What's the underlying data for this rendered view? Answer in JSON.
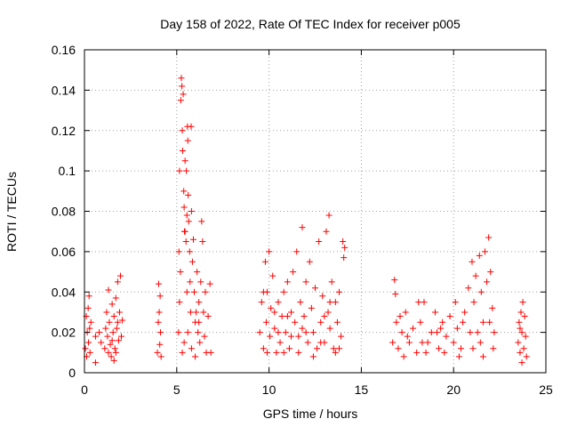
{
  "chart_data": {
    "type": "scatter",
    "title": "Day 158 of 2022, Rate Of TEC Index for receiver p005",
    "xlabel": "GPS time / hours",
    "ylabel": "ROTI / TECUs",
    "xlim": [
      0,
      25
    ],
    "ylim": [
      0,
      0.16
    ],
    "x_ticks": [
      0,
      5,
      10,
      15,
      20,
      25
    ],
    "x_tick_labels": [
      "0",
      "5",
      "10",
      "15",
      "20",
      "25"
    ],
    "y_ticks": [
      0,
      0.02,
      0.04,
      0.06,
      0.08,
      0.1,
      0.12,
      0.14,
      0.16
    ],
    "y_tick_labels": [
      "0",
      "0.02",
      "0.04",
      "0.06",
      "0.08",
      "0.1",
      "0.12",
      "0.14",
      "0.16"
    ],
    "grid": true,
    "marker": "+",
    "color": "#ff0000",
    "series": [
      {
        "name": "ROTI",
        "points": [
          [
            0.05,
            0.012
          ],
          [
            0.1,
            0.028
          ],
          [
            0.12,
            0.008
          ],
          [
            0.15,
            0.02
          ],
          [
            0.2,
            0.032
          ],
          [
            0.22,
            0.015
          ],
          [
            0.25,
            0.038
          ],
          [
            0.28,
            0.022
          ],
          [
            0.3,
            0.01
          ],
          [
            0.35,
            0.025
          ],
          [
            0.6,
            0.005
          ],
          [
            0.6,
            0.018
          ],
          [
            0.8,
            0.02
          ],
          [
            0.9,
            0.015
          ],
          [
            1.1,
            0.012
          ],
          [
            1.15,
            0.022
          ],
          [
            1.2,
            0.03
          ],
          [
            1.25,
            0.018
          ],
          [
            1.3,
            0.041
          ],
          [
            1.35,
            0.025
          ],
          [
            1.4,
            0.014
          ],
          [
            1.45,
            0.008
          ],
          [
            1.5,
            0.034
          ],
          [
            1.55,
            0.02
          ],
          [
            1.6,
            0.028
          ],
          [
            1.65,
            0.012
          ],
          [
            1.7,
            0.037
          ],
          [
            1.75,
            0.022
          ],
          [
            1.8,
            0.045
          ],
          [
            1.85,
            0.016
          ],
          [
            1.9,
            0.03
          ],
          [
            1.95,
            0.048
          ],
          [
            2.0,
            0.018
          ],
          [
            2.05,
            0.026
          ],
          [
            1.7,
            0.01
          ],
          [
            1.5,
            0.016
          ],
          [
            1.3,
            0.01
          ],
          [
            1.8,
            0.025
          ],
          [
            1.6,
            0.006
          ],
          [
            3.95,
            0.01
          ],
          [
            4.0,
            0.025
          ],
          [
            4.02,
            0.044
          ],
          [
            4.05,
            0.03
          ],
          [
            4.08,
            0.014
          ],
          [
            4.1,
            0.038
          ],
          [
            4.12,
            0.02
          ],
          [
            4.15,
            0.008
          ],
          [
            5.1,
            0.02
          ],
          [
            5.12,
            0.06
          ],
          [
            5.15,
            0.1
          ],
          [
            5.2,
            0.05
          ],
          [
            5.22,
            0.135
          ],
          [
            5.25,
            0.146
          ],
          [
            5.28,
            0.142
          ],
          [
            5.3,
            0.12
          ],
          [
            5.32,
            0.11
          ],
          [
            5.35,
            0.138
          ],
          [
            5.38,
            0.09
          ],
          [
            5.4,
            0.082
          ],
          [
            5.42,
            0.07
          ],
          [
            5.45,
            0.105
          ],
          [
            5.5,
            0.065
          ],
          [
            5.52,
            0.1
          ],
          [
            5.55,
            0.04
          ],
          [
            5.58,
            0.122
          ],
          [
            5.6,
            0.115
          ],
          [
            5.62,
            0.088
          ],
          [
            5.65,
            0.075
          ],
          [
            5.7,
            0.06
          ],
          [
            5.72,
            0.045
          ],
          [
            5.75,
            0.03
          ],
          [
            5.78,
            0.122
          ],
          [
            5.8,
            0.08
          ],
          [
            5.85,
            0.055
          ],
          [
            5.9,
            0.066
          ],
          [
            5.95,
            0.04
          ],
          [
            6.0,
            0.025
          ],
          [
            6.05,
            0.03
          ],
          [
            6.1,
            0.05
          ],
          [
            6.15,
            0.02
          ],
          [
            6.2,
            0.035
          ],
          [
            6.25,
            0.015
          ],
          [
            6.3,
            0.045
          ],
          [
            6.35,
            0.075
          ],
          [
            6.4,
            0.065
          ],
          [
            6.45,
            0.03
          ],
          [
            6.5,
            0.018
          ],
          [
            6.55,
            0.04
          ],
          [
            6.6,
            0.01
          ],
          [
            6.7,
            0.028
          ],
          [
            5.3,
            0.01
          ],
          [
            5.4,
            0.015
          ],
          [
            5.6,
            0.02
          ],
          [
            5.8,
            0.012
          ],
          [
            6.0,
            0.008
          ],
          [
            6.2,
            0.025
          ],
          [
            6.8,
            0.044
          ],
          [
            6.85,
            0.01
          ],
          [
            5.45,
            0.07
          ],
          [
            5.55,
            0.078
          ],
          [
            5.15,
            0.035
          ],
          [
            9.5,
            0.02
          ],
          [
            9.6,
            0.035
          ],
          [
            9.7,
            0.012
          ],
          [
            9.8,
            0.055
          ],
          [
            9.85,
            0.025
          ],
          [
            9.9,
            0.04
          ],
          [
            10.0,
            0.06
          ],
          [
            10.05,
            0.018
          ],
          [
            10.1,
            0.032
          ],
          [
            10.2,
            0.048
          ],
          [
            10.3,
            0.022
          ],
          [
            10.4,
            0.01
          ],
          [
            10.5,
            0.035
          ],
          [
            10.6,
            0.015
          ],
          [
            10.7,
            0.028
          ],
          [
            10.8,
            0.04
          ],
          [
            10.9,
            0.02
          ],
          [
            11.0,
            0.045
          ],
          [
            11.1,
            0.012
          ],
          [
            11.2,
            0.03
          ],
          [
            11.3,
            0.05
          ],
          [
            11.4,
            0.025
          ],
          [
            11.5,
            0.06
          ],
          [
            11.6,
            0.018
          ],
          [
            11.7,
            0.035
          ],
          [
            11.8,
            0.072
          ],
          [
            11.9,
            0.028
          ],
          [
            12.0,
            0.045
          ],
          [
            12.1,
            0.015
          ],
          [
            12.2,
            0.055
          ],
          [
            12.3,
            0.032
          ],
          [
            12.4,
            0.02
          ],
          [
            12.5,
            0.042
          ],
          [
            12.6,
            0.012
          ],
          [
            12.7,
            0.065
          ],
          [
            12.8,
            0.025
          ],
          [
            12.9,
            0.038
          ],
          [
            13.0,
            0.015
          ],
          [
            13.1,
            0.07
          ],
          [
            13.2,
            0.03
          ],
          [
            13.25,
            0.078
          ],
          [
            13.3,
            0.022
          ],
          [
            13.4,
            0.045
          ],
          [
            13.5,
            0.012
          ],
          [
            13.6,
            0.035
          ],
          [
            13.7,
            0.025
          ],
          [
            13.8,
            0.04
          ],
          [
            13.9,
            0.018
          ],
          [
            14.0,
            0.065
          ],
          [
            14.05,
            0.057
          ],
          [
            14.1,
            0.062
          ],
          [
            9.7,
            0.04
          ],
          [
            10.3,
            0.03
          ],
          [
            11.0,
            0.028
          ],
          [
            12.0,
            0.02
          ],
          [
            13.0,
            0.028
          ],
          [
            10.8,
            0.01
          ],
          [
            11.6,
            0.01
          ],
          [
            12.4,
            0.008
          ],
          [
            13.6,
            0.01
          ],
          [
            9.9,
            0.01
          ],
          [
            11.2,
            0.018
          ],
          [
            12.8,
            0.015
          ],
          [
            13.8,
            0.012
          ],
          [
            10.5,
            0.02
          ],
          [
            11.8,
            0.022
          ],
          [
            13.3,
            0.035
          ],
          [
            16.7,
            0.015
          ],
          [
            16.8,
            0.046
          ],
          [
            16.85,
            0.039
          ],
          [
            16.9,
            0.025
          ],
          [
            17.0,
            0.012
          ],
          [
            17.2,
            0.02
          ],
          [
            17.4,
            0.03
          ],
          [
            17.6,
            0.015
          ],
          [
            17.8,
            0.022
          ],
          [
            18.0,
            0.01
          ],
          [
            18.2,
            0.025
          ],
          [
            18.4,
            0.035
          ],
          [
            18.6,
            0.015
          ],
          [
            18.8,
            0.02
          ],
          [
            19.0,
            0.03
          ],
          [
            19.2,
            0.012
          ],
          [
            19.4,
            0.025
          ],
          [
            19.6,
            0.018
          ],
          [
            19.8,
            0.028
          ],
          [
            20.0,
            0.015
          ],
          [
            20.2,
            0.022
          ],
          [
            20.4,
            0.012
          ],
          [
            20.6,
            0.03
          ],
          [
            20.8,
            0.042
          ],
          [
            21.0,
            0.055
          ],
          [
            21.1,
            0.035
          ],
          [
            21.2,
            0.048
          ],
          [
            21.3,
            0.02
          ],
          [
            21.4,
            0.058
          ],
          [
            21.5,
            0.04
          ],
          [
            21.6,
            0.025
          ],
          [
            21.7,
            0.06
          ],
          [
            21.8,
            0.045
          ],
          [
            21.9,
            0.067
          ],
          [
            22.0,
            0.05
          ],
          [
            22.1,
            0.032
          ],
          [
            22.2,
            0.02
          ],
          [
            17.1,
            0.028
          ],
          [
            17.5,
            0.018
          ],
          [
            18.1,
            0.035
          ],
          [
            18.5,
            0.01
          ],
          [
            19.1,
            0.02
          ],
          [
            19.5,
            0.01
          ],
          [
            20.1,
            0.035
          ],
          [
            20.5,
            0.025
          ],
          [
            21.05,
            0.012
          ],
          [
            21.45,
            0.015
          ],
          [
            21.95,
            0.025
          ],
          [
            22.15,
            0.012
          ],
          [
            17.3,
            0.008
          ],
          [
            18.3,
            0.015
          ],
          [
            19.3,
            0.022
          ],
          [
            20.3,
            0.008
          ],
          [
            20.9,
            0.02
          ],
          [
            21.6,
            0.008
          ],
          [
            23.5,
            0.015
          ],
          [
            23.55,
            0.025
          ],
          [
            23.6,
            0.01
          ],
          [
            23.65,
            0.03
          ],
          [
            23.7,
            0.02
          ],
          [
            23.75,
            0.035
          ],
          [
            23.8,
            0.012
          ],
          [
            23.85,
            0.028
          ],
          [
            23.9,
            0.018
          ],
          [
            23.95,
            0.008
          ],
          [
            23.7,
            0.005
          ],
          [
            23.6,
            0.022
          ]
        ]
      }
    ]
  }
}
